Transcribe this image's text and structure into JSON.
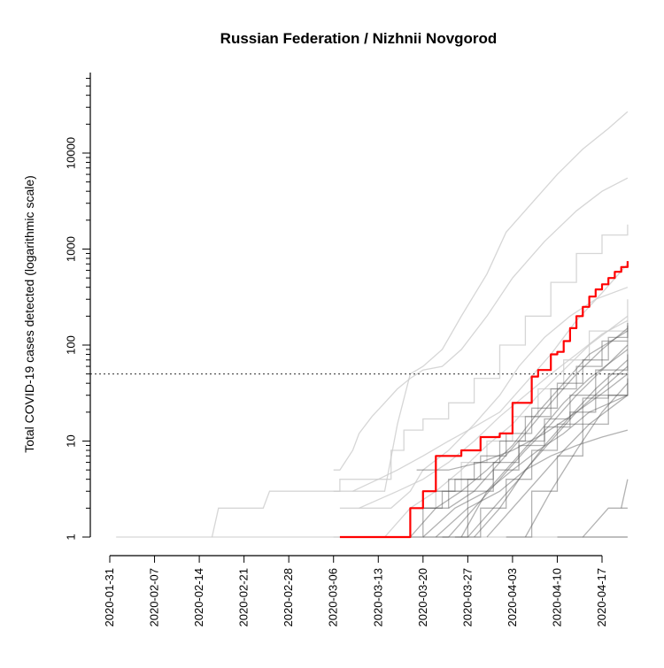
{
  "chart_data": {
    "type": "line",
    "title": "Russian Federation / Nizhnii Novgorod",
    "xlabel": "",
    "ylabel": "Total COVID-19 cases detected (logarithmic scale)",
    "y_scale": "log",
    "ylim": [
      1,
      70000
    ],
    "xlim": [
      "2020-01-31",
      "2020-04-23"
    ],
    "x_ticks": [
      "2020-01-31",
      "2020-02-07",
      "2020-02-14",
      "2020-02-21",
      "2020-02-28",
      "2020-03-06",
      "2020-03-13",
      "2020-03-20",
      "2020-03-27",
      "2020-04-03",
      "2020-04-10",
      "2020-04-17"
    ],
    "y_ticks": [
      {
        "value": 1,
        "label": "1"
      },
      {
        "value": 10,
        "label": "10"
      },
      {
        "value": 100,
        "label": "100"
      },
      {
        "value": 1000,
        "label": "1000"
      },
      {
        "value": 10000,
        "label": "10000"
      }
    ],
    "reference_line": {
      "y": 50,
      "style": "dotted",
      "color": "#555555"
    },
    "highlight_color": "#ff0000",
    "background_line_colors": [
      "#cccccc",
      "#555555"
    ],
    "highlight": {
      "x": [
        "2020-03-07",
        "2020-03-17",
        "2020-03-18",
        "2020-03-19",
        "2020-03-20",
        "2020-03-21",
        "2020-03-22",
        "2020-03-23",
        "2020-03-24",
        "2020-03-25",
        "2020-03-26",
        "2020-03-27",
        "2020-03-28",
        "2020-03-29",
        "2020-03-30",
        "2020-03-31",
        "2020-04-01",
        "2020-04-02",
        "2020-04-03",
        "2020-04-04",
        "2020-04-05",
        "2020-04-06",
        "2020-04-07",
        "2020-04-08",
        "2020-04-09",
        "2020-04-10",
        "2020-04-11",
        "2020-04-12",
        "2020-04-13",
        "2020-04-14",
        "2020-04-15",
        "2020-04-16",
        "2020-04-17",
        "2020-04-18",
        "2020-04-19",
        "2020-04-20",
        "2020-04-21"
      ],
      "y": [
        1,
        1,
        2,
        2,
        3,
        3,
        7,
        7,
        7,
        7,
        8,
        8,
        8,
        11,
        11,
        11,
        12,
        12,
        25,
        25,
        25,
        47,
        55,
        55,
        80,
        85,
        110,
        150,
        200,
        250,
        320,
        380,
        430,
        500,
        580,
        650,
        750
      ]
    },
    "series": [
      {
        "x": [
          "2020-02-01",
          "2020-04-21"
        ],
        "y": [
          1,
          1
        ]
      },
      {
        "x": [
          "2020-02-16",
          "2020-02-17",
          "2020-02-24",
          "2020-02-25",
          "2020-03-14",
          "2020-03-16",
          "2020-03-18",
          "2020-03-20",
          "2020-03-23",
          "2020-03-26",
          "2020-03-30",
          "2020-04-02",
          "2020-04-06",
          "2020-04-10",
          "2020-04-14",
          "2020-04-18",
          "2020-04-21"
        ],
        "y": [
          1,
          2,
          2,
          3,
          3,
          15,
          50,
          60,
          90,
          200,
          550,
          1500,
          3000,
          6000,
          11000,
          18000,
          27000
        ]
      },
      {
        "x": [
          "2020-03-06",
          "2020-03-07",
          "2020-03-09",
          "2020-03-10",
          "2020-03-12",
          "2020-03-14",
          "2020-03-16",
          "2020-03-18",
          "2020-03-20",
          "2020-03-23",
          "2020-03-26",
          "2020-03-30",
          "2020-04-03",
          "2020-04-08",
          "2020-04-13",
          "2020-04-17",
          "2020-04-21"
        ],
        "y": [
          5,
          5,
          8,
          12,
          18,
          25,
          35,
          45,
          55,
          60,
          90,
          200,
          500,
          1200,
          2500,
          4000,
          5500
        ]
      },
      {
        "x": [
          "2020-03-06",
          "2020-03-07",
          "2020-03-13",
          "2020-03-15",
          "2020-03-17",
          "2020-03-20",
          "2020-03-24",
          "2020-03-28",
          "2020-04-01",
          "2020-04-05",
          "2020-04-09",
          "2020-04-13",
          "2020-04-17",
          "2020-04-21"
        ],
        "y": [
          3,
          4,
          4,
          8,
          13,
          17,
          25,
          45,
          100,
          200,
          450,
          900,
          1400,
          1800
        ]
      },
      {
        "x": [
          "2020-03-09",
          "2020-03-13",
          "2020-03-16",
          "2020-03-20",
          "2020-03-24",
          "2020-03-28",
          "2020-04-01",
          "2020-04-05",
          "2020-04-09",
          "2020-04-13",
          "2020-04-17",
          "2020-04-21"
        ],
        "y": [
          3,
          4,
          5,
          7,
          10,
          14,
          20,
          40,
          80,
          180,
          350,
          700
        ]
      },
      {
        "x": [
          "2020-03-07",
          "2020-03-15",
          "2020-03-18",
          "2020-03-20",
          "2020-03-24",
          "2020-03-28",
          "2020-04-01",
          "2020-04-04",
          "2020-04-08",
          "2020-04-12",
          "2020-04-16",
          "2020-04-21"
        ],
        "y": [
          2,
          2,
          3,
          5,
          8,
          15,
          30,
          60,
          120,
          200,
          300,
          400
        ]
      },
      {
        "x": [
          "2020-03-06",
          "2020-03-12",
          "2020-03-18",
          "2020-03-22",
          "2020-03-26",
          "2020-03-30",
          "2020-04-03",
          "2020-04-07",
          "2020-04-11",
          "2020-04-15",
          "2020-04-21"
        ],
        "y": [
          1,
          1,
          2,
          3,
          6,
          10,
          18,
          35,
          70,
          140,
          300
        ]
      },
      {
        "x": [
          "2020-03-14",
          "2020-03-18",
          "2020-03-22",
          "2020-03-26",
          "2020-03-30",
          "2020-04-03",
          "2020-04-07",
          "2020-04-11",
          "2020-04-15",
          "2020-04-21"
        ],
        "y": [
          1,
          2,
          3,
          5,
          9,
          15,
          30,
          55,
          100,
          200
        ]
      },
      {
        "x": [
          "2020-03-10",
          "2020-03-16",
          "2020-03-20",
          "2020-03-24",
          "2020-03-28",
          "2020-04-01",
          "2020-04-05",
          "2020-04-09",
          "2020-04-13",
          "2020-04-17",
          "2020-04-21"
        ],
        "y": [
          2,
          3,
          4,
          6,
          10,
          18,
          30,
          50,
          80,
          130,
          180
        ]
      },
      {
        "x": [
          "2020-03-17",
          "2020-03-20",
          "2020-03-24",
          "2020-03-28",
          "2020-04-01",
          "2020-04-05",
          "2020-04-09",
          "2020-04-13",
          "2020-04-17",
          "2020-04-21"
        ],
        "y": [
          1,
          2,
          4,
          6,
          10,
          18,
          35,
          60,
          110,
          160
        ]
      },
      {
        "x": [
          "2020-03-18",
          "2020-03-22",
          "2020-03-26",
          "2020-03-30",
          "2020-04-03",
          "2020-04-07",
          "2020-04-11",
          "2020-04-15",
          "2020-04-21"
        ],
        "y": [
          1,
          2,
          3,
          5,
          9,
          20,
          40,
          80,
          140
        ]
      },
      {
        "x": [
          "2020-03-20",
          "2020-03-24",
          "2020-03-28",
          "2020-04-01",
          "2020-04-05",
          "2020-04-09",
          "2020-04-13",
          "2020-04-17",
          "2020-04-21"
        ],
        "y": [
          1,
          1,
          2,
          4,
          8,
          15,
          30,
          55,
          100
        ]
      },
      {
        "x": [
          "2020-03-19",
          "2020-03-23",
          "2020-03-27",
          "2020-03-31",
          "2020-04-04",
          "2020-04-08",
          "2020-04-12",
          "2020-04-16",
          "2020-04-21"
        ],
        "y": [
          2,
          3,
          4,
          6,
          10,
          14,
          20,
          30,
          45
        ]
      },
      {
        "x": [
          "2020-03-20",
          "2020-03-25",
          "2020-03-30",
          "2020-04-03",
          "2020-04-07",
          "2020-04-11",
          "2020-04-15",
          "2020-04-21"
        ],
        "y": [
          1,
          2,
          3,
          5,
          8,
          12,
          20,
          30
        ]
      },
      {
        "x": [
          "2020-03-22",
          "2020-03-27",
          "2020-04-01",
          "2020-04-05",
          "2020-04-09",
          "2020-04-13",
          "2020-04-17",
          "2020-04-21"
        ],
        "y": [
          1,
          2,
          3,
          5,
          7,
          9,
          11,
          13
        ]
      },
      {
        "x": [
          "2020-03-25",
          "2020-03-29",
          "2020-04-02",
          "2020-04-06",
          "2020-04-10",
          "2020-04-14",
          "2020-04-18",
          "2020-04-21"
        ],
        "y": [
          1,
          2,
          4,
          8,
          15,
          28,
          50,
          80
        ]
      },
      {
        "x": [
          "2020-03-27",
          "2020-03-31",
          "2020-04-04",
          "2020-04-08",
          "2020-04-12",
          "2020-04-16",
          "2020-04-21"
        ],
        "y": [
          1,
          2,
          4,
          9,
          18,
          35,
          70
        ]
      },
      {
        "x": [
          "2020-03-24",
          "2020-03-28",
          "2020-04-01",
          "2020-04-05",
          "2020-04-09",
          "2020-04-13",
          "2020-04-17",
          "2020-04-21"
        ],
        "y": [
          2,
          3,
          6,
          12,
          25,
          50,
          90,
          150
        ]
      },
      {
        "x": [
          "2020-03-21",
          "2020-03-25",
          "2020-03-29",
          "2020-04-02",
          "2020-04-06",
          "2020-04-10",
          "2020-04-14",
          "2020-04-18",
          "2020-04-21"
        ],
        "y": [
          3,
          4,
          7,
          12,
          22,
          40,
          70,
          120,
          170
        ]
      },
      {
        "x": [
          "2020-03-26",
          "2020-03-30",
          "2020-04-03",
          "2020-04-07",
          "2020-04-11",
          "2020-04-15",
          "2020-04-21"
        ],
        "y": [
          1,
          3,
          6,
          12,
          25,
          45,
          90
        ]
      },
      {
        "x": [
          "2020-03-30",
          "2020-04-03",
          "2020-04-07",
          "2020-04-11",
          "2020-04-15",
          "2020-04-21"
        ],
        "y": [
          1,
          2,
          4,
          8,
          15,
          30
        ]
      },
      {
        "x": [
          "2020-04-02",
          "2020-04-06",
          "2020-04-10",
          "2020-04-14",
          "2020-04-18",
          "2020-04-21"
        ],
        "y": [
          1,
          3,
          7,
          15,
          30,
          50
        ]
      },
      {
        "x": [
          "2020-03-28",
          "2020-04-01",
          "2020-04-05",
          "2020-04-09",
          "2020-04-13",
          "2020-04-17",
          "2020-04-21"
        ],
        "y": [
          1,
          2,
          5,
          10,
          20,
          35,
          60
        ]
      },
      {
        "x": [
          "2020-04-05",
          "2020-04-09",
          "2020-04-13",
          "2020-04-17",
          "2020-04-21"
        ],
        "y": [
          1,
          3,
          8,
          20,
          40
        ]
      },
      {
        "x": [
          "2020-03-23",
          "2020-03-27",
          "2020-03-31",
          "2020-04-04",
          "2020-04-08",
          "2020-04-12",
          "2020-04-16",
          "2020-04-21"
        ],
        "y": [
          1,
          3,
          5,
          9,
          17,
          30,
          55,
          110
        ]
      },
      {
        "x": [
          "2020-03-19",
          "2020-03-24",
          "2020-03-29",
          "2020-04-03",
          "2020-04-08",
          "2020-04-13",
          "2020-04-18",
          "2020-04-21"
        ],
        "y": [
          5,
          5,
          6,
          8,
          12,
          20,
          35,
          50
        ]
      },
      {
        "x": [
          "2020-04-10",
          "2020-04-14",
          "2020-04-18",
          "2020-04-21"
        ],
        "y": [
          1,
          1,
          2,
          2
        ]
      },
      {
        "x": [
          "2020-04-14",
          "2020-04-21"
        ],
        "y": [
          1,
          1
        ]
      },
      {
        "x": [
          "2020-04-20",
          "2020-04-21"
        ],
        "y": [
          2,
          4
        ]
      }
    ]
  }
}
